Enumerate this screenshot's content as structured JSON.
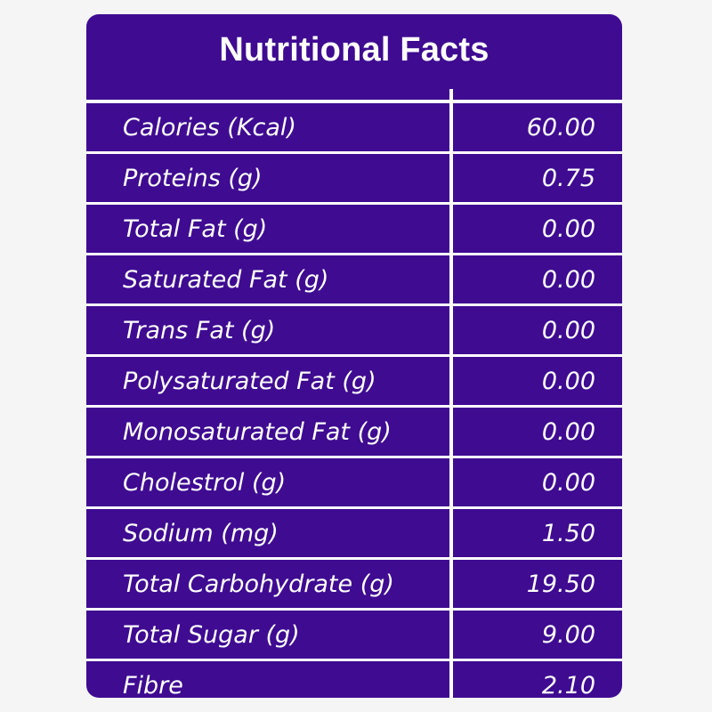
{
  "table": {
    "title": "Nutritional Facts",
    "rows": [
      {
        "label": "Calories (Kcal)",
        "value": "60.00"
      },
      {
        "label": "Proteins (g)",
        "value": "0.75"
      },
      {
        "label": "Total Fat (g)",
        "value": "0.00"
      },
      {
        "label": "Saturated Fat (g)",
        "value": "0.00"
      },
      {
        "label": "Trans Fat (g)",
        "value": "0.00"
      },
      {
        "label": "Polysaturated Fat (g)",
        "value": "0.00"
      },
      {
        "label": "Monosaturated Fat (g)",
        "value": "0.00"
      },
      {
        "label": "Cholestrol (g)",
        "value": "0.00"
      },
      {
        "label": "Sodium (mg)",
        "value": "1.50"
      },
      {
        "label": "Total Carbohydrate (g)",
        "value": "19.50"
      },
      {
        "label": "Total Sugar (g)",
        "value": "9.00"
      },
      {
        "label": "Fibre",
        "value": "2.10"
      }
    ]
  },
  "colors": {
    "panel": "#3e0b91",
    "text": "#ffffff",
    "background": "#f5f5f5"
  }
}
